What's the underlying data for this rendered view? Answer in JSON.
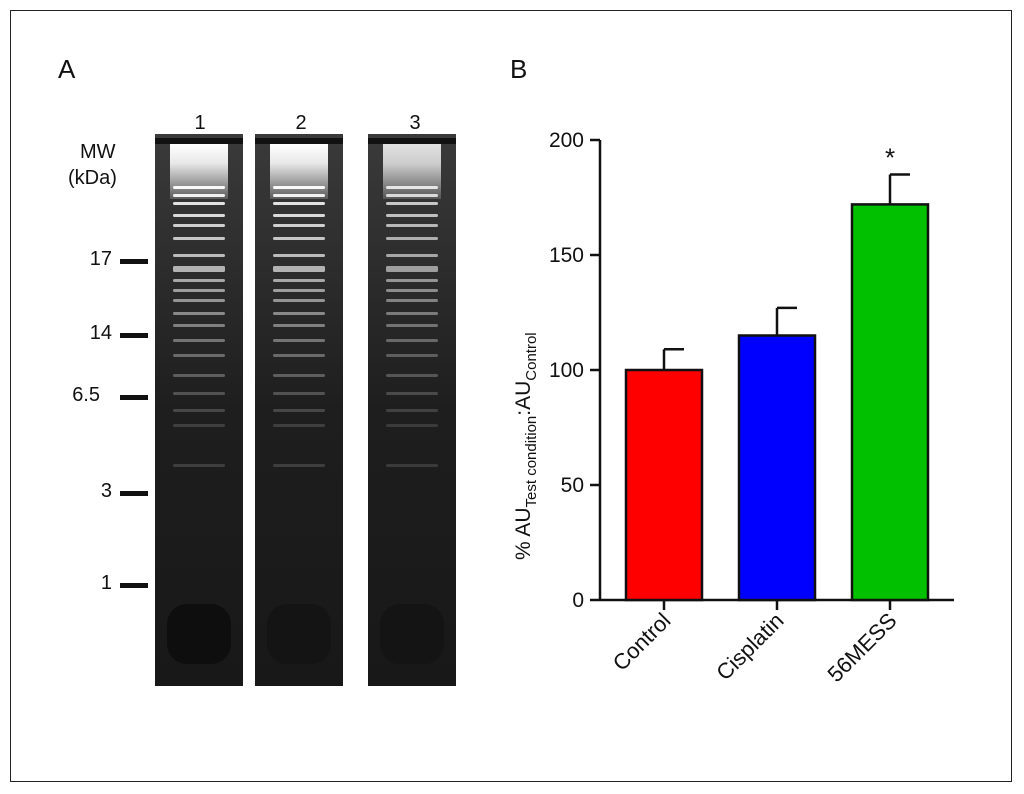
{
  "panels": {
    "a_label": "A",
    "b_label": "B"
  },
  "gel": {
    "lanes": [
      "1",
      "2",
      "3"
    ],
    "mw_header_line1": "MW",
    "mw_header_line2": "(kDa)",
    "markers": [
      "17",
      "14",
      "6.5",
      "3",
      "1"
    ]
  },
  "chart_data": {
    "type": "bar",
    "categories": [
      "Control",
      "Cisplatin",
      "56MESS"
    ],
    "values": [
      100,
      115,
      172
    ],
    "errors": [
      9,
      12,
      13
    ],
    "bar_colors": [
      "#ff0000",
      "#0000ff",
      "#00c000"
    ],
    "significance": [
      "",
      "",
      "*"
    ],
    "ylabel_main": "% AU",
    "ylabel_sub1": "Test condition",
    "ylabel_mid": ":AU",
    "ylabel_sub2": "Control",
    "ylim": [
      0,
      200
    ],
    "yticks": [
      0,
      50,
      100,
      150,
      200
    ]
  }
}
